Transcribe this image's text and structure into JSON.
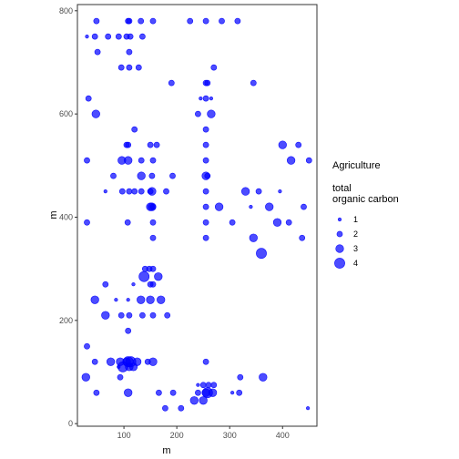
{
  "chart_data": {
    "type": "scatter",
    "xlabel": "m",
    "ylabel": "m",
    "xlim": [
      12,
      465
    ],
    "ylim": [
      -5,
      812
    ],
    "x_ticks": [
      100,
      200,
      300,
      400
    ],
    "y_ticks": [
      0,
      200,
      400,
      600,
      800
    ],
    "grid": false,
    "legend": {
      "placement": "right",
      "heading": "Agriculture",
      "title_lines": [
        "total",
        "organic carbon"
      ],
      "entries": [
        {
          "label": "1",
          "value": 1
        },
        {
          "label": "2",
          "value": 2
        },
        {
          "label": "3",
          "value": 3
        },
        {
          "label": "4",
          "value": 4
        }
      ]
    },
    "marker_color": "#0000FF",
    "marker_alpha": 0.7,
    "size_range": [
      0.8,
      4.6
    ],
    "points": [
      [
        48,
        780,
        2
      ],
      [
        108,
        780,
        2
      ],
      [
        110,
        780,
        2
      ],
      [
        132,
        780,
        2
      ],
      [
        155,
        780,
        2
      ],
      [
        225,
        780,
        2
      ],
      [
        255,
        780,
        2
      ],
      [
        285,
        780,
        2
      ],
      [
        315,
        780,
        2
      ],
      [
        30,
        750,
        1
      ],
      [
        45,
        750,
        2
      ],
      [
        70,
        750,
        2
      ],
      [
        90,
        750,
        2
      ],
      [
        105,
        750,
        2
      ],
      [
        112,
        750,
        2
      ],
      [
        135,
        750,
        2
      ],
      [
        50,
        720,
        2
      ],
      [
        110,
        720,
        2
      ],
      [
        95,
        690,
        2
      ],
      [
        110,
        690,
        2
      ],
      [
        128,
        690,
        2
      ],
      [
        270,
        690,
        2
      ],
      [
        190,
        660,
        2
      ],
      [
        255,
        660,
        2
      ],
      [
        258,
        660,
        2
      ],
      [
        345,
        660,
        2
      ],
      [
        33,
        630,
        2
      ],
      [
        245,
        630,
        1
      ],
      [
        255,
        630,
        2
      ],
      [
        265,
        630,
        1
      ],
      [
        47,
        600,
        3
      ],
      [
        240,
        600,
        2
      ],
      [
        265,
        600,
        3
      ],
      [
        120,
        570,
        2
      ],
      [
        255,
        570,
        2
      ],
      [
        105,
        540,
        2
      ],
      [
        108,
        540,
        2
      ],
      [
        150,
        540,
        2
      ],
      [
        162,
        540,
        2
      ],
      [
        255,
        540,
        2
      ],
      [
        400,
        540,
        3
      ],
      [
        430,
        540,
        2
      ],
      [
        30,
        510,
        2
      ],
      [
        96,
        510,
        3
      ],
      [
        108,
        510,
        3
      ],
      [
        133,
        510,
        2
      ],
      [
        155,
        510,
        2
      ],
      [
        255,
        510,
        2
      ],
      [
        416,
        510,
        3
      ],
      [
        450,
        510,
        2
      ],
      [
        80,
        480,
        2
      ],
      [
        133,
        480,
        3
      ],
      [
        153,
        480,
        2
      ],
      [
        192,
        480,
        2
      ],
      [
        255,
        480,
        3
      ],
      [
        258,
        480,
        2
      ],
      [
        65,
        450,
        1
      ],
      [
        97,
        450,
        2
      ],
      [
        110,
        450,
        2
      ],
      [
        120,
        450,
        2
      ],
      [
        133,
        450,
        2
      ],
      [
        150,
        450,
        2
      ],
      [
        153,
        450,
        3
      ],
      [
        180,
        450,
        2
      ],
      [
        255,
        450,
        2
      ],
      [
        330,
        450,
        3
      ],
      [
        355,
        450,
        2
      ],
      [
        395,
        450,
        1
      ],
      [
        150,
        420,
        3
      ],
      [
        153,
        420,
        3
      ],
      [
        155,
        420,
        2
      ],
      [
        255,
        420,
        2
      ],
      [
        280,
        420,
        3
      ],
      [
        340,
        420,
        1
      ],
      [
        375,
        420,
        3
      ],
      [
        440,
        420,
        2
      ],
      [
        30,
        390,
        2
      ],
      [
        107,
        390,
        2
      ],
      [
        155,
        390,
        2
      ],
      [
        255,
        390,
        2
      ],
      [
        305,
        390,
        2
      ],
      [
        390,
        390,
        3
      ],
      [
        412,
        390,
        2
      ],
      [
        155,
        360,
        2
      ],
      [
        255,
        360,
        2
      ],
      [
        345,
        360,
        3
      ],
      [
        437,
        360,
        2
      ],
      [
        360,
        330,
        4
      ],
      [
        140,
        300,
        2
      ],
      [
        148,
        300,
        2
      ],
      [
        155,
        300,
        2
      ],
      [
        138,
        285,
        4
      ],
      [
        165,
        285,
        3
      ],
      [
        65,
        270,
        2
      ],
      [
        118,
        270,
        1
      ],
      [
        150,
        270,
        2
      ],
      [
        155,
        270,
        2
      ],
      [
        45,
        240,
        3
      ],
      [
        85,
        240,
        1
      ],
      [
        108,
        240,
        1
      ],
      [
        132,
        240,
        3
      ],
      [
        150,
        240,
        3
      ],
      [
        170,
        240,
        3
      ],
      [
        65,
        210,
        3
      ],
      [
        95,
        210,
        2
      ],
      [
        110,
        210,
        2
      ],
      [
        135,
        210,
        2
      ],
      [
        155,
        210,
        2
      ],
      [
        182,
        210,
        2
      ],
      [
        108,
        180,
        2
      ],
      [
        30,
        150,
        2
      ],
      [
        45,
        120,
        2
      ],
      [
        75,
        120,
        3
      ],
      [
        93,
        120,
        3
      ],
      [
        105,
        120,
        3
      ],
      [
        108,
        120,
        4
      ],
      [
        113,
        120,
        4
      ],
      [
        125,
        120,
        3
      ],
      [
        145,
        120,
        2
      ],
      [
        155,
        120,
        3
      ],
      [
        255,
        120,
        2
      ],
      [
        90,
        110,
        1
      ],
      [
        98,
        110,
        4
      ],
      [
        110,
        110,
        3
      ],
      [
        118,
        110,
        3
      ],
      [
        28,
        90,
        3
      ],
      [
        93,
        90,
        2
      ],
      [
        320,
        90,
        2
      ],
      [
        363,
        90,
        3
      ],
      [
        48,
        60,
        2
      ],
      [
        108,
        60,
        3
      ],
      [
        166,
        60,
        2
      ],
      [
        193,
        60,
        2
      ],
      [
        240,
        60,
        2
      ],
      [
        255,
        60,
        3
      ],
      [
        258,
        60,
        4
      ],
      [
        268,
        60,
        3
      ],
      [
        318,
        60,
        2
      ],
      [
        240,
        75,
        1
      ],
      [
        250,
        75,
        2
      ],
      [
        260,
        75,
        2
      ],
      [
        270,
        75,
        2
      ],
      [
        233,
        45,
        3
      ],
      [
        250,
        45,
        3
      ],
      [
        178,
        30,
        2
      ],
      [
        208,
        30,
        2
      ],
      [
        448,
        30,
        1
      ],
      [
        305,
        60,
        1
      ]
    ]
  }
}
